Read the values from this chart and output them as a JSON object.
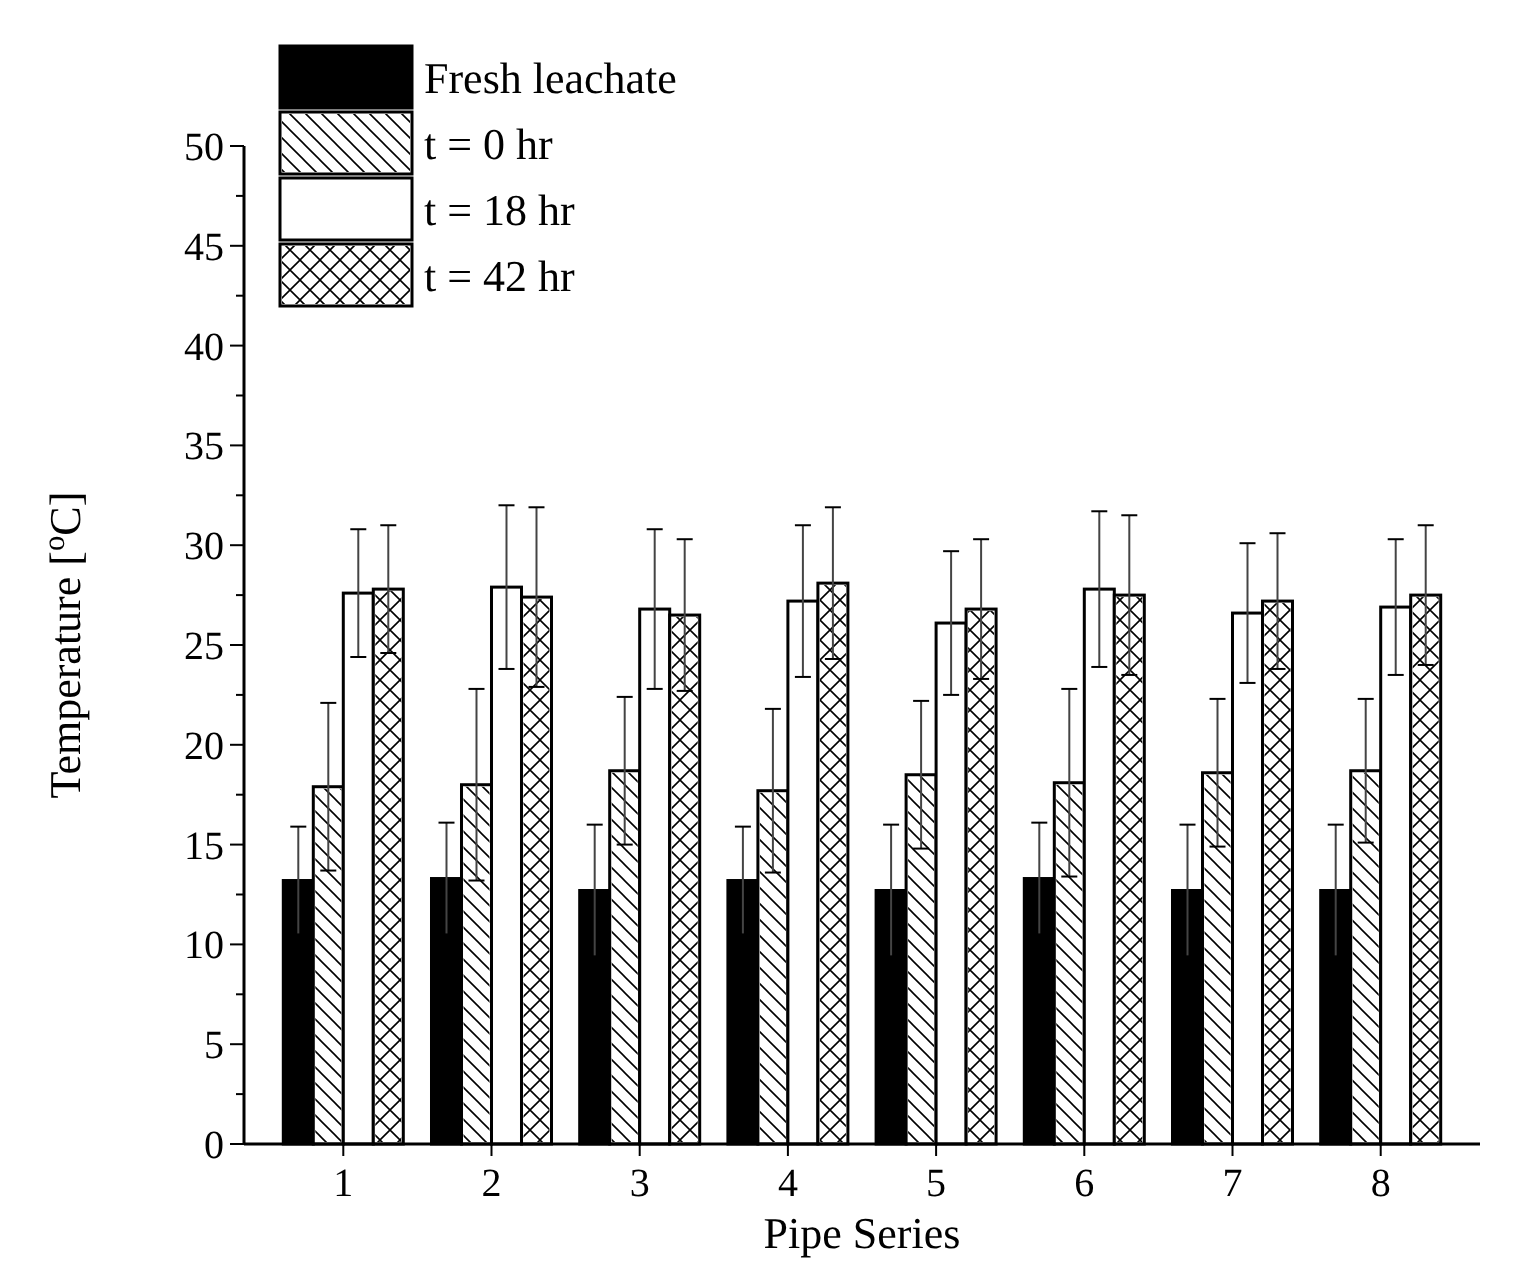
{
  "chart_data": {
    "type": "bar",
    "xlabel": "Pipe Series",
    "ylabel": "Temperature [$^{o}$C]",
    "categories": [
      "1",
      "2",
      "3",
      "4",
      "5",
      "6",
      "7",
      "8"
    ],
    "series": [
      {
        "name": "Fresh leachate",
        "color": "#000000",
        "values": [
          13.2,
          13.3,
          12.7,
          13.2,
          12.7,
          13.3,
          12.7,
          12.7
        ],
        "errors": [
          2.7,
          2.8,
          3.3,
          2.7,
          3.3,
          2.8,
          3.3,
          3.3
        ]
      },
      {
        "name": "t = 0 hr",
        "color": "#ffffff",
        "values": [
          17.9,
          18.0,
          18.7,
          17.7,
          18.5,
          18.1,
          18.6,
          18.7
        ],
        "errors": [
          4.2,
          4.8,
          3.7,
          4.1,
          3.7,
          4.7,
          3.7,
          3.6
        ]
      },
      {
        "name": "t = 18 hr",
        "color": "#ffffff",
        "values": [
          27.6,
          27.9,
          26.8,
          27.2,
          26.1,
          27.8,
          26.6,
          26.9
        ],
        "errors": [
          3.2,
          4.1,
          4.0,
          3.8,
          3.6,
          3.9,
          3.5,
          3.4
        ]
      },
      {
        "name": "t = 42 hr",
        "color": "#ffffff",
        "values": [
          27.8,
          27.4,
          26.5,
          28.1,
          26.8,
          27.5,
          27.2,
          27.5
        ],
        "errors": [
          3.2,
          4.5,
          3.8,
          3.8,
          3.5,
          4.0,
          3.4,
          3.5
        ]
      }
    ],
    "ylim": [
      0,
      50
    ],
    "yticks": [
      0,
      {
        "value": 2.5,
        "label": null
      },
      5,
      {
        "value": 7.5,
        "label": null
      },
      10,
      {
        "value": 12.5,
        "label": null
      },
      15,
      {
        "value": 17.5,
        "label": null
      },
      20,
      {
        "value": 22.5,
        "label": null
      },
      25,
      {
        "value": 27.5,
        "label": null
      },
      30,
      {
        "value": 32.5,
        "label": null
      },
      35,
      {
        "value": 37.5,
        "label": null
      },
      40,
      {
        "value": 42.5,
        "label": null
      },
      45,
      {
        "value": 47.5,
        "label": null
      },
      50
    ],
    "legend": "top left"
  }
}
